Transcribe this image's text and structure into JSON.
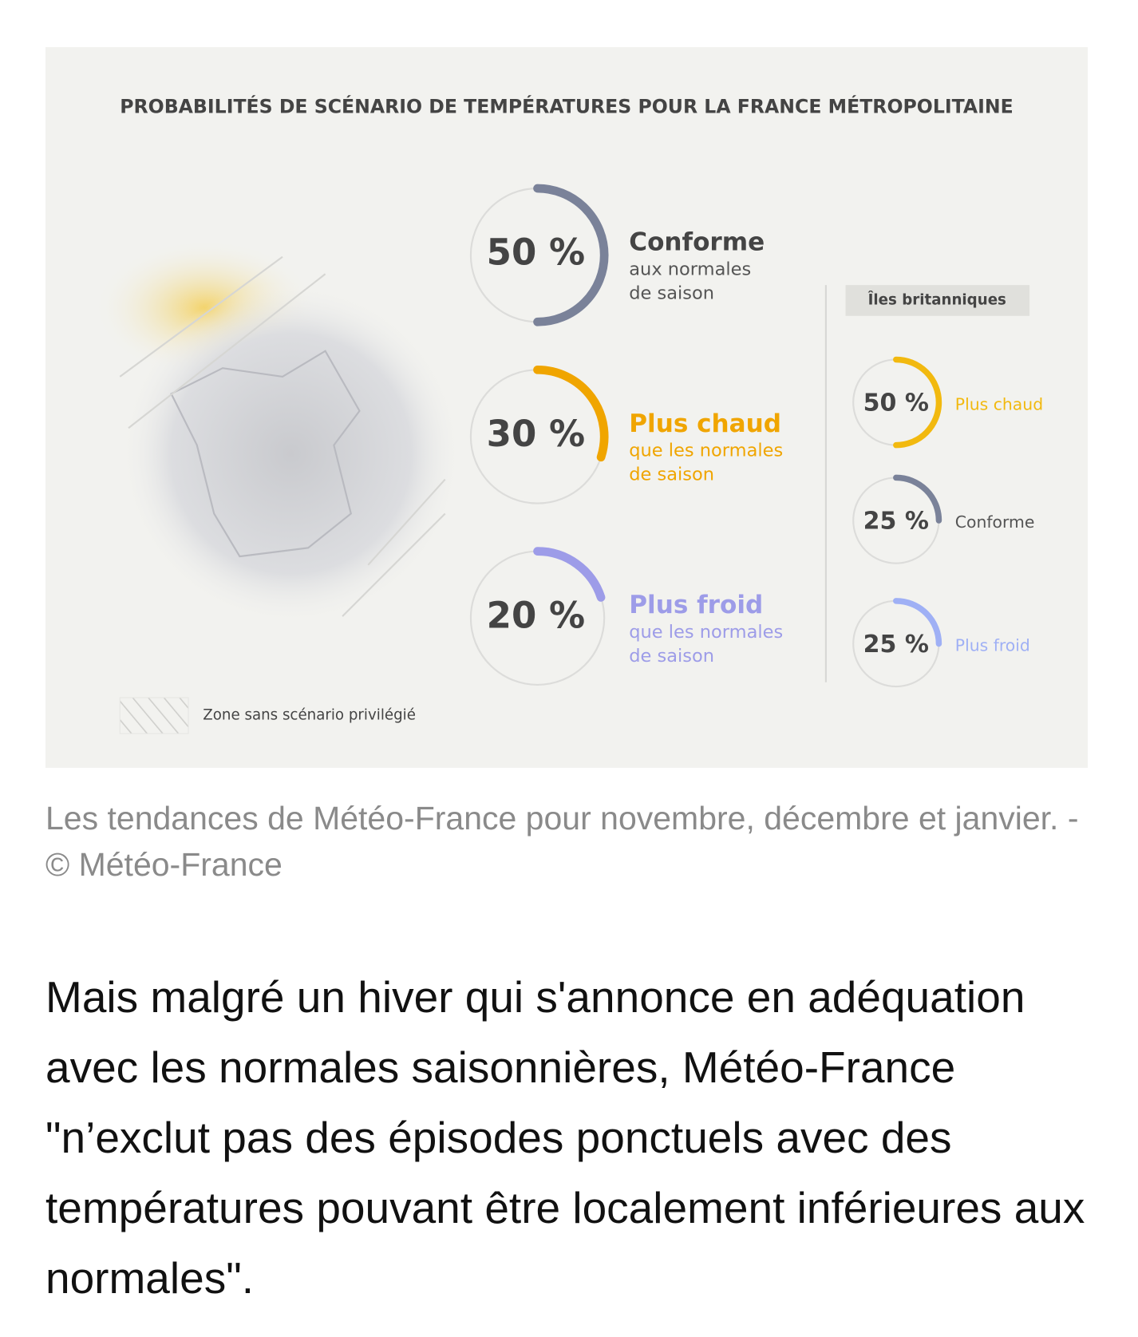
{
  "infographic": {
    "title": "PROBABILITÉS DE SCÉNARIO DE TEMPÉRATURES POUR LA FRANCE MÉTROPOLITAINE",
    "main_items": [
      {
        "value": 50,
        "value_label": "50 %",
        "label": "Conforme",
        "sublabel": [
          "aux normales",
          "de saison"
        ],
        "color": "#7a8299"
      },
      {
        "value": 30,
        "value_label": "30 %",
        "label": "Plus chaud",
        "sublabel": [
          "que les normales",
          "de saison"
        ],
        "color": "#f0a500"
      },
      {
        "value": 20,
        "value_label": "20 %",
        "label": "Plus froid",
        "sublabel": [
          "que les normales",
          "de saison"
        ],
        "color": "#9d9ce8"
      }
    ],
    "side_title": "Îles britanniques",
    "side_items": [
      {
        "value": 50,
        "value_label": "50 %",
        "label": "Plus chaud",
        "color": "#f2b90f"
      },
      {
        "value": 25,
        "value_label": "25 %",
        "label": "Conforme",
        "color": "#7a8299"
      },
      {
        "value": 25,
        "value_label": "25 %",
        "label": "Plus froid",
        "color": "#9fb0f5"
      }
    ],
    "legend": "Zone sans scénario privilégié"
  },
  "caption": "Les tendances de Météo-France pour novembre, décembre et janvier. - © Météo-France",
  "paragraph": "Mais malgré un hiver qui s'annonce en adéquation avec les normales saisonnières, Météo-France \"n’exclut pas des épisodes ponctuels avec des températures pouvant être localement inférieures aux normales\"."
}
